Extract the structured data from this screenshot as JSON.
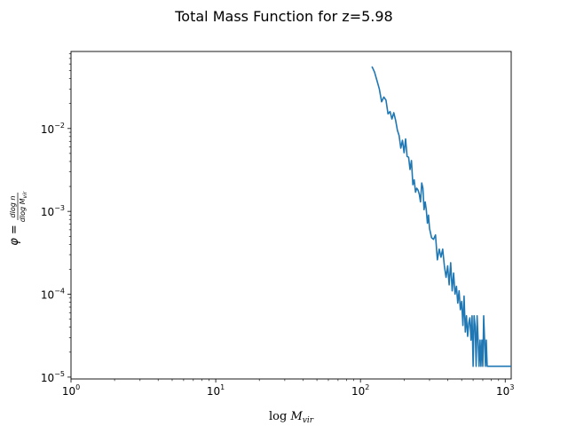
{
  "chart_data": {
    "type": "line",
    "title": "Total Mass Function for z=5.98",
    "xlabel": "log M_vir",
    "ylabel": "φ = dlog n / dlog M_vir",
    "xscale": "log",
    "yscale": "log",
    "xlim": [
      1,
      1100
    ],
    "ylim": [
      9.5e-06,
      0.085
    ],
    "x_ticks": [
      {
        "value": 1,
        "base": "10",
        "exp": "0"
      },
      {
        "value": 10,
        "base": "10",
        "exp": "1"
      },
      {
        "value": 100,
        "base": "10",
        "exp": "2"
      },
      {
        "value": 1000,
        "base": "10",
        "exp": "3"
      }
    ],
    "y_ticks": [
      {
        "value": 1e-05,
        "base": "10",
        "exp": "−5"
      },
      {
        "value": 0.0001,
        "base": "10",
        "exp": "−4"
      },
      {
        "value": 0.001,
        "base": "10",
        "exp": "−3"
      },
      {
        "value": 0.01,
        "base": "10",
        "exp": "−2"
      }
    ],
    "grid": false,
    "legend": "none",
    "series": [
      {
        "color": "#1f77b4",
        "x": [
          120,
          125,
          130,
          135,
          140,
          145,
          150,
          155,
          160,
          165,
          170,
          175,
          180,
          185,
          190,
          195,
          200,
          205,
          210,
          215,
          220,
          225,
          230,
          235,
          240,
          245,
          250,
          255,
          260,
          265,
          270,
          275,
          280,
          285,
          290,
          295,
          300,
          310,
          320,
          330,
          340,
          350,
          360,
          370,
          380,
          390,
          400,
          410,
          420,
          430,
          440,
          450,
          460,
          470,
          480,
          490,
          500,
          510,
          520,
          530,
          540,
          550,
          560,
          570,
          580,
          590,
          600,
          610,
          620,
          630,
          640,
          650,
          660,
          670,
          680,
          690,
          700,
          710,
          720,
          730,
          740,
          750,
          760,
          780,
          800,
          850,
          900,
          950,
          1000,
          1100
        ],
        "y": [
          0.056,
          0.048,
          0.038,
          0.03,
          0.021,
          0.024,
          0.022,
          0.015,
          0.016,
          0.013,
          0.0155,
          0.0125,
          0.0095,
          0.0082,
          0.0058,
          0.0072,
          0.0051,
          0.0075,
          0.0046,
          0.0045,
          0.0032,
          0.0041,
          0.0021,
          0.0024,
          0.0017,
          0.0019,
          0.0018,
          0.0016,
          0.0013,
          0.0022,
          0.0019,
          0.00105,
          0.0013,
          0.00105,
          0.00072,
          0.0009,
          0.00062,
          0.00048,
          0.00046,
          0.00052,
          0.00026,
          0.00035,
          0.00028,
          0.00035,
          0.00022,
          0.00016,
          0.00022,
          0.00013,
          0.00024,
          0.00011,
          0.00018,
          0.0001,
          0.000125,
          7.8e-05,
          0.00011,
          6.5e-05,
          8.2e-05,
          4.2e-05,
          9.5e-05,
          3.5e-05,
          5.5e-05,
          3.1e-05,
          4.5e-05,
          5.2e-05,
          2.8e-05,
          5.5e-05,
          1.35e-05,
          5.5e-05,
          4.1e-05,
          1.35e-05,
          5.5e-05,
          2.8e-05,
          1.35e-05,
          2.8e-05,
          1.35e-05,
          2.8e-05,
          1.35e-05,
          5.5e-05,
          2.8e-05,
          1.35e-05,
          2.8e-05,
          1.35e-05,
          1.35e-05,
          1.35e-05,
          1.35e-05,
          1.35e-05,
          1.35e-05,
          1.35e-05,
          1.35e-05,
          1.35e-05
        ]
      }
    ]
  }
}
